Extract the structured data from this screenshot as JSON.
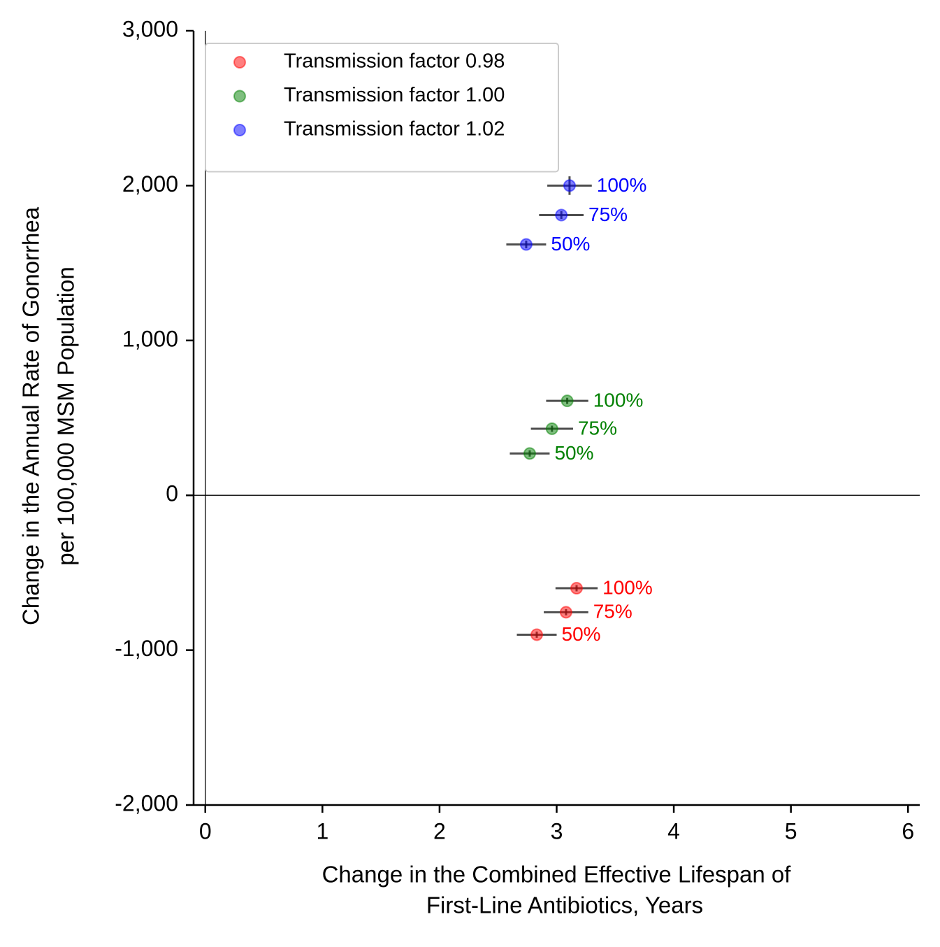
{
  "chart_data": {
    "type": "scatter",
    "xlabel": [
      "Change in the Combined Effective Lifespan of",
      "First-Line Antibiotics, Years"
    ],
    "ylabel": [
      "Change in the Annual Rate of Gonorrhea",
      "per 100,000 MSM Population"
    ],
    "xlim": [
      -0.1,
      6.1
    ],
    "ylim": [
      -2000,
      3000
    ],
    "xticks": [
      0,
      1,
      2,
      3,
      4,
      5,
      6
    ],
    "yticks": [
      {
        "value": -2000,
        "label": "-2,000"
      },
      {
        "value": -1000,
        "label": "-1,000"
      },
      0,
      {
        "value": 1000,
        "label": "1,000"
      },
      {
        "value": 2000,
        "label": "2,000"
      },
      {
        "value": 3000,
        "label": "3,000"
      }
    ],
    "zero_lines": true,
    "legend": "upper left",
    "series": [
      {
        "name": "Transmission factor 0.98",
        "color": "#ff0000",
        "x": [
          3.17,
          3.08,
          2.83
        ],
        "values": [
          -600,
          -755,
          -900
        ],
        "x_err": [
          0.18,
          0.19,
          0.17
        ],
        "y_err": [
          20,
          20,
          20
        ],
        "point_labels": [
          "100%",
          "75%",
          "50%"
        ]
      },
      {
        "name": "Transmission factor 1.00",
        "color": "#008000",
        "x": [
          3.09,
          2.96,
          2.77
        ],
        "values": [
          610,
          430,
          270
        ],
        "x_err": [
          0.18,
          0.18,
          0.17
        ],
        "y_err": [
          20,
          20,
          20
        ],
        "point_labels": [
          "100%",
          "75%",
          "50%"
        ]
      },
      {
        "name": "Transmission factor 1.02",
        "color": "#0000ff",
        "x": [
          3.11,
          3.04,
          2.74
        ],
        "values": [
          2000,
          1810,
          1620
        ],
        "x_err": [
          0.19,
          0.19,
          0.17
        ],
        "y_err": [
          60,
          25,
          25
        ],
        "point_labels": [
          "100%",
          "75%",
          "50%"
        ]
      }
    ]
  }
}
